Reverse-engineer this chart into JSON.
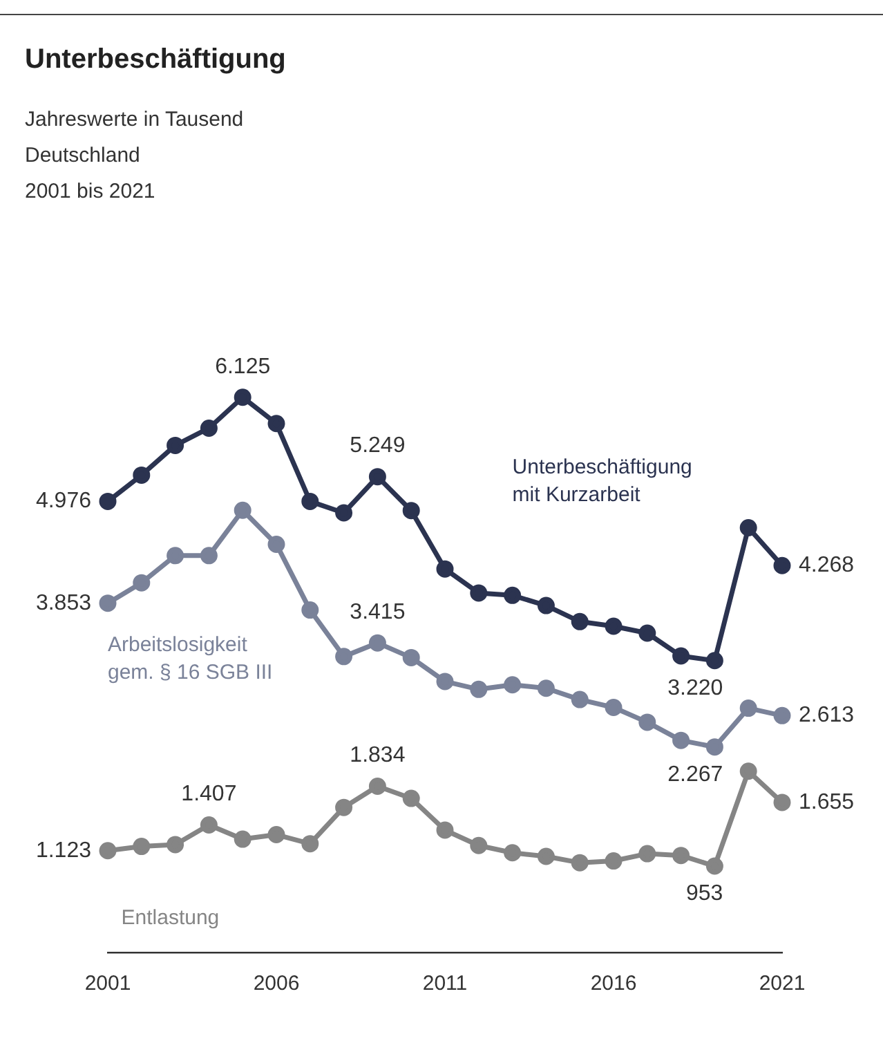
{
  "chart_data": {
    "type": "line",
    "title": "Unterbeschäftigung",
    "subtitle": "Jahreswerte in Tausend\nDeutschland\n2001 bis 2021",
    "x": [
      2001,
      2002,
      2003,
      2004,
      2005,
      2006,
      2007,
      2008,
      2009,
      2010,
      2011,
      2012,
      2013,
      2014,
      2015,
      2016,
      2017,
      2018,
      2019,
      2020,
      2021
    ],
    "xlim": [
      2001,
      2021
    ],
    "xticks": [
      2001,
      2006,
      2011,
      2016,
      2021
    ],
    "tick_labels": "x",
    "grid": false,
    "legend": false,
    "marker": "circle",
    "line_style": "solid",
    "series": [
      {
        "name": "Unterbeschäftigung mit Kurzarbeit",
        "color": "#2b3350",
        "values": [
          4976,
          5266,
          5594,
          5784,
          6125,
          5835,
          4976,
          4850,
          5249,
          4875,
          4231,
          3966,
          3940,
          3827,
          3650,
          3599,
          3523,
          3271,
          3220,
          4686,
          4268
        ],
        "value_labels": [
          "4.976",
          null,
          null,
          null,
          "6.125",
          null,
          null,
          null,
          "5.249",
          null,
          null,
          null,
          null,
          null,
          null,
          null,
          null,
          null,
          "3.220",
          null,
          "4.268"
        ]
      },
      {
        "name": "Arbeitslosigkeit gem. § 16 SGB III",
        "color": "#7a8299",
        "values": [
          3853,
          4078,
          4378,
          4378,
          4878,
          4503,
          3778,
          3265,
          3415,
          3253,
          2990,
          2903,
          2953,
          2915,
          2790,
          2703,
          2540,
          2340,
          2267,
          2695,
          2613
        ],
        "value_labels": [
          "3.853",
          null,
          null,
          null,
          null,
          null,
          null,
          null,
          "3.415",
          null,
          null,
          null,
          null,
          null,
          null,
          null,
          null,
          null,
          "2.267",
          null,
          "2.613"
        ]
      },
      {
        "name": "Entlastung",
        "color": "#858585",
        "values": [
          1123,
          1170,
          1190,
          1407,
          1250,
          1300,
          1200,
          1600,
          1834,
          1700,
          1350,
          1180,
          1100,
          1060,
          990,
          1010,
          1090,
          1070,
          953,
          2000,
          1655
        ],
        "value_labels": [
          "1.123",
          null,
          null,
          "1.407",
          null,
          null,
          null,
          null,
          "1.834",
          null,
          null,
          null,
          null,
          null,
          null,
          null,
          null,
          null,
          "953",
          null,
          "1.655"
        ]
      }
    ]
  }
}
